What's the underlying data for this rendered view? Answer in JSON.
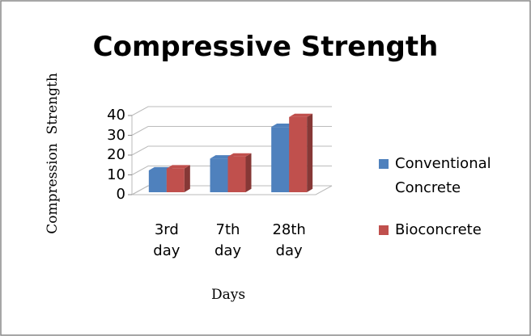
{
  "chart_data": {
    "type": "bar3d",
    "title": "Compressive Strength",
    "x_label": "Days",
    "y_label": "Compression  Strength",
    "categories": [
      "3rd day",
      "7th day",
      "28th day"
    ],
    "series": [
      {
        "name": "Conventional Concrete",
        "color": "#4f81bd",
        "values": [
          11,
          17,
          33
        ]
      },
      {
        "name": "Bioconcrete",
        "color": "#c0504d",
        "values": [
          12,
          18,
          38
        ]
      }
    ],
    "ylim": [
      0,
      40
    ],
    "yticks": [
      0,
      10,
      20,
      30,
      40
    ],
    "grid": true,
    "legend": "right"
  }
}
